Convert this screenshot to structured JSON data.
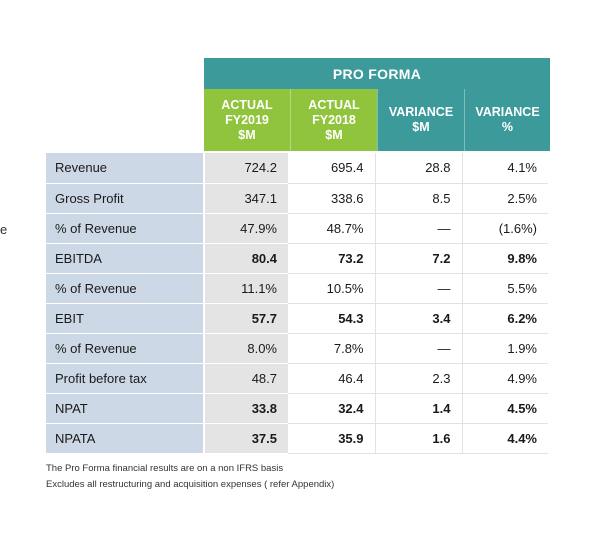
{
  "edge_char": "e",
  "banner": "PRO FORMA",
  "headers": [
    {
      "label": "ACTUAL\nFY2019\n$M",
      "style": "green",
      "width": 86
    },
    {
      "label": "ACTUAL\nFY2018\n$M",
      "style": "green",
      "width": 87
    },
    {
      "label": "VARIANCE\n$M",
      "style": "teal",
      "width": 87
    },
    {
      "label": "VARIANCE\n%",
      "style": "teal",
      "width": 86
    }
  ],
  "rows": [
    {
      "label": "Revenue",
      "values": [
        "724.2",
        "695.4",
        "28.8",
        "4.1%"
      ],
      "bold": false
    },
    {
      "label": "Gross Profit",
      "values": [
        "347.1",
        "338.6",
        "8.5",
        "2.5%"
      ],
      "bold": false
    },
    {
      "label": "% of Revenue",
      "values": [
        "47.9%",
        "48.7%",
        "—",
        "(1.6%)"
      ],
      "bold": false
    },
    {
      "label": "EBITDA",
      "values": [
        "80.4",
        "73.2",
        "7.2",
        "9.8%"
      ],
      "bold": true
    },
    {
      "label": "% of Revenue",
      "values": [
        "11.1%",
        "10.5%",
        "—",
        "5.5%"
      ],
      "bold": false
    },
    {
      "label": "EBIT",
      "values": [
        "57.7",
        "54.3",
        "3.4",
        "6.2%"
      ],
      "bold": true
    },
    {
      "label": "% of Revenue",
      "values": [
        "8.0%",
        "7.8%",
        "—",
        "1.9%"
      ],
      "bold": false
    },
    {
      "label": "Profit before tax",
      "values": [
        "48.7",
        "46.4",
        "2.3",
        "4.9%"
      ],
      "bold": false
    },
    {
      "label": "NPAT",
      "values": [
        "33.8",
        "32.4",
        "1.4",
        "4.5%"
      ],
      "bold": true
    },
    {
      "label": "NPATA",
      "values": [
        "37.5",
        "35.9",
        "1.6",
        "4.4%"
      ],
      "bold": true
    }
  ],
  "footnotes": [
    "The Pro Forma financial results are on a non IFRS basis",
    "Excludes all restructuring and acquisition expenses ( refer Appendix)"
  ]
}
